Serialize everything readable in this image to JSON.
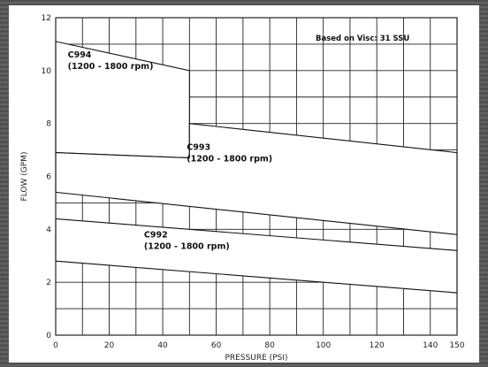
{
  "chart_data": {
    "type": "area",
    "xlabel": "PRESSURE (PSI)",
    "ylabel": "FLOW (GPM)",
    "xlim": [
      0,
      150
    ],
    "ylim": [
      0,
      12
    ],
    "x_ticks": [
      "0",
      "20",
      "40",
      "60",
      "80",
      "100",
      "120",
      "140",
      "150"
    ],
    "y_ticks": [
      "0",
      "2",
      "4",
      "6",
      "8",
      "10",
      "12"
    ],
    "grid": true,
    "note": "Based on Visc: 31 SSU",
    "regions": [
      {
        "name": "C994",
        "label_line1": "C994",
        "label_line2": "(1200 - 1800 rpm)",
        "polygon": [
          [
            0,
            11.1
          ],
          [
            50,
            10.0
          ],
          [
            50,
            6.7
          ],
          [
            0,
            6.9
          ]
        ]
      },
      {
        "name": "C993",
        "label_line1": "C993",
        "label_line2": "(1200 - 1800 rpm)",
        "polygon": [
          [
            50,
            8.0
          ],
          [
            150,
            6.9
          ],
          [
            150,
            3.8
          ],
          [
            0,
            5.4
          ],
          [
            0,
            6.9
          ],
          [
            50,
            6.7
          ]
        ]
      },
      {
        "name": "C992",
        "label_line1": "C992",
        "label_line2": "(1200 - 1800 rpm)",
        "polygon": [
          [
            0,
            4.4
          ],
          [
            150,
            3.2
          ],
          [
            150,
            1.6
          ],
          [
            0,
            2.8
          ]
        ]
      }
    ]
  }
}
